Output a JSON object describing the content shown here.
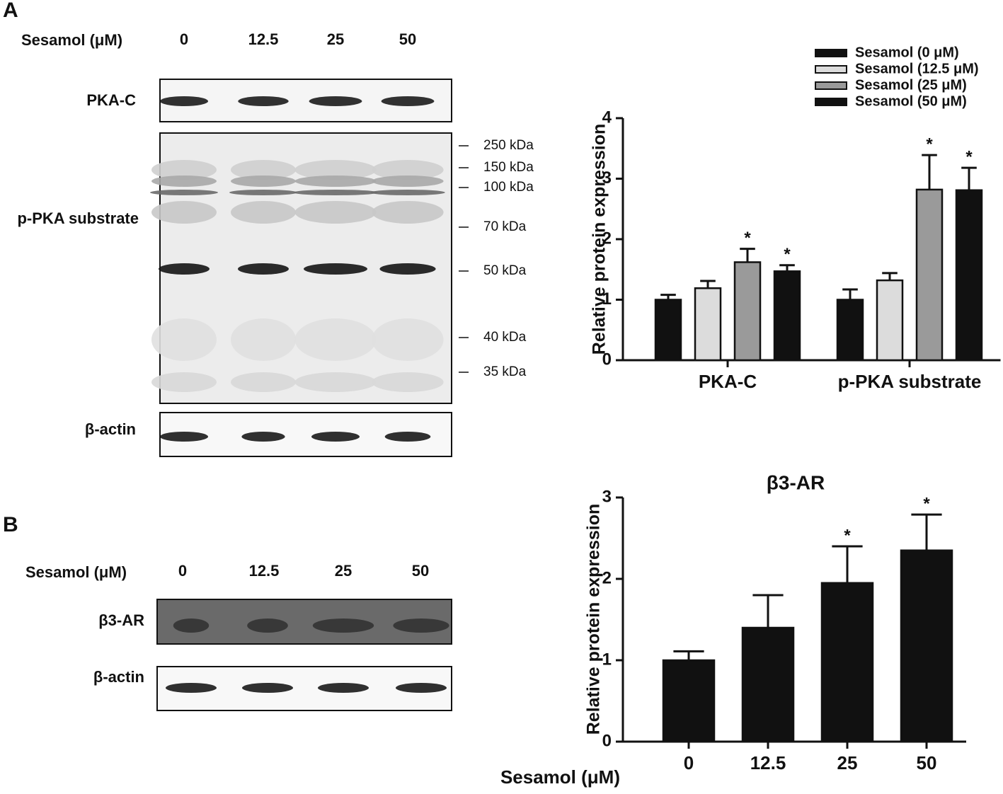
{
  "panel_labels": [
    "A",
    "B"
  ],
  "blots": [
    {
      "treatment_label": "Sesamol (μM)",
      "doses": [
        "0",
        "12.5",
        "25",
        "50"
      ],
      "rows": [
        "PKA-C",
        "p-PKA substrate",
        "β-actin"
      ],
      "markers": [
        "250 kDa",
        "150 kDa",
        "100 kDa",
        "70 kDa",
        "50 kDa",
        "40 kDa",
        "35 kDa"
      ]
    },
    {
      "treatment_label": "Sesamol (μM)",
      "doses": [
        "0",
        "12.5",
        "25",
        "50"
      ],
      "rows": [
        "β3-AR",
        "β-actin"
      ]
    }
  ],
  "chart_data": [
    {
      "type": "bar",
      "ylabel": "Relative protein expression",
      "categories": [
        "PKA-C",
        "p-PKA substrate"
      ],
      "series": [
        {
          "name": "Sesamol (0 μM)",
          "color": "#111111",
          "values": [
            1.0,
            1.0
          ],
          "errors": [
            0.08,
            0.17
          ]
        },
        {
          "name": "Sesamol (12.5 μM)",
          "color": "#dcdcdc",
          "values": [
            1.19,
            1.32
          ],
          "errors": [
            0.12,
            0.12
          ]
        },
        {
          "name": "Sesamol (25 μM)",
          "color": "#9a9a9a",
          "values": [
            1.62,
            2.82
          ],
          "errors": [
            0.22,
            0.57
          ],
          "significance": [
            "*",
            "*"
          ]
        },
        {
          "name": "Sesamol (50 μM)",
          "color": "#111111",
          "values": [
            1.47,
            2.81
          ],
          "errors": [
            0.1,
            0.37
          ],
          "significance": [
            "*",
            "*"
          ]
        }
      ],
      "ylim": [
        0,
        4
      ],
      "yticks": [
        0,
        1,
        2,
        3,
        4
      ],
      "legend": "top-right"
    },
    {
      "type": "bar",
      "title": "β3-AR",
      "ylabel": "Relative protein expression",
      "xlabel": "Sesamol (μM)",
      "categories": [
        "0",
        "12.5",
        "25",
        "50"
      ],
      "series": [
        {
          "color": "#111111",
          "values": [
            1.0,
            1.4,
            1.95,
            2.35
          ],
          "errors": [
            0.11,
            0.4,
            0.45,
            0.44
          ],
          "significance": [
            null,
            null,
            "*",
            "*"
          ]
        }
      ],
      "ylim": [
        0,
        3
      ],
      "yticks": [
        0,
        1,
        2,
        3
      ]
    }
  ]
}
